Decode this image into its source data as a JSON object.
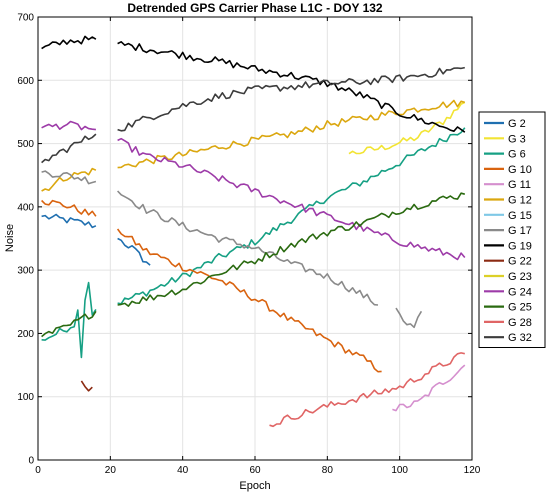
{
  "chart_data": {
    "type": "line",
    "title": "Detrended GPS Carrier Phase L1C - DOY 132",
    "xlabel": "Epoch",
    "ylabel": "Noise",
    "xlim": [
      0,
      120
    ],
    "ylim": [
      0,
      700
    ],
    "xticks": [
      0,
      20,
      40,
      60,
      80,
      100,
      120
    ],
    "yticks": [
      0,
      100,
      200,
      300,
      400,
      500,
      600,
      700
    ],
    "grid": true,
    "legend_position": "right-outside",
    "series": [
      {
        "name": "G 2",
        "color": "#1f6fb0",
        "segments": [
          [
            [
              1,
              385
            ],
            [
              5,
              382
            ],
            [
              10,
              377
            ],
            [
              16,
              370
            ]
          ],
          [
            [
              22,
              350
            ],
            [
              26,
              335
            ],
            [
              29,
              318
            ],
            [
              31,
              308
            ]
          ]
        ]
      },
      {
        "name": "G 3",
        "color": "#f2e433",
        "segments": [
          [
            [
              86,
              484
            ],
            [
              95,
              493
            ],
            [
              105,
              510
            ],
            [
              112,
              535
            ],
            [
              118,
              565
            ]
          ]
        ]
      },
      {
        "name": "G 6",
        "color": "#16a084",
        "segments": [
          [
            [
              1,
              190
            ],
            [
              4,
              197
            ],
            [
              7,
              205
            ],
            [
              10,
              215
            ],
            [
              11,
              235
            ],
            [
              12,
              168
            ],
            [
              13,
              255
            ],
            [
              14,
              283
            ],
            [
              15,
              230
            ],
            [
              16,
              238
            ]
          ],
          [
            [
              22,
              248
            ],
            [
              30,
              265
            ],
            [
              40,
              290
            ],
            [
              50,
              320
            ],
            [
              60,
              345
            ],
            [
              70,
              380
            ],
            [
              80,
              415
            ],
            [
              90,
              440
            ],
            [
              100,
              470
            ],
            [
              110,
              500
            ],
            [
              118,
              525
            ]
          ]
        ]
      },
      {
        "name": "G 10",
        "color": "#d9630f",
        "segments": [
          [
            [
              1,
              410
            ],
            [
              8,
              402
            ],
            [
              16,
              385
            ]
          ],
          [
            [
              22,
              365
            ],
            [
              30,
              330
            ],
            [
              40,
              305
            ],
            [
              50,
              285
            ],
            [
              60,
              255
            ],
            [
              70,
              220
            ],
            [
              80,
              190
            ],
            [
              90,
              160
            ],
            [
              95,
              140
            ]
          ]
        ]
      },
      {
        "name": "G 11",
        "color": "#d58fce",
        "segments": [
          [
            [
              98,
              80
            ],
            [
              105,
              90
            ],
            [
              110,
              115
            ],
            [
              115,
              135
            ],
            [
              118,
              150
            ]
          ]
        ]
      },
      {
        "name": "G 12",
        "color": "#dba70f",
        "segments": [
          [
            [
              1,
              425
            ],
            [
              8,
              448
            ],
            [
              16,
              458
            ]
          ],
          [
            [
              22,
              462
            ],
            [
              30,
              472
            ],
            [
              40,
              482
            ],
            [
              50,
              495
            ],
            [
              60,
              505
            ],
            [
              70,
              515
            ],
            [
              80,
              530
            ],
            [
              90,
              540
            ],
            [
              100,
              550
            ],
            [
              110,
              560
            ],
            [
              118,
              565
            ]
          ]
        ]
      },
      {
        "name": "G 15",
        "color": "#7fc8e6",
        "segments": []
      },
      {
        "name": "G 17",
        "color": "#8a8a8a",
        "segments": [
          [
            [
              1,
              455
            ],
            [
              8,
              450
            ],
            [
              16,
              440
            ]
          ],
          [
            [
              22,
              425
            ],
            [
              30,
              395
            ],
            [
              40,
              370
            ],
            [
              50,
              350
            ],
            [
              60,
              335
            ],
            [
              70,
              310
            ],
            [
              80,
              290
            ],
            [
              90,
              260
            ],
            [
              94,
              245
            ]
          ],
          [
            [
              99,
              240
            ],
            [
              102,
              215
            ],
            [
              104,
              210
            ],
            [
              106,
              235
            ]
          ]
        ]
      },
      {
        "name": "G 19",
        "color": "#000000",
        "segments": [
          [
            [
              1,
              650
            ],
            [
              8,
              662
            ],
            [
              16,
              665
            ]
          ],
          [
            [
              22,
              658
            ],
            [
              30,
              650
            ],
            [
              40,
              640
            ],
            [
              50,
              630
            ],
            [
              60,
              618
            ],
            [
              70,
              608
            ],
            [
              80,
              595
            ],
            [
              90,
              575
            ],
            [
              100,
              548
            ],
            [
              110,
              530
            ],
            [
              118,
              518
            ]
          ]
        ]
      },
      {
        "name": "G 22",
        "color": "#8b2a12",
        "segments": [
          [
            [
              12,
              125
            ],
            [
              13,
              118
            ],
            [
              14,
              114
            ],
            [
              15,
              115
            ]
          ]
        ]
      },
      {
        "name": "G 23",
        "color": "#dcd028",
        "segments": []
      },
      {
        "name": "G 24",
        "color": "#9d3ba8",
        "segments": [
          [
            [
              1,
              525
            ],
            [
              8,
              530
            ],
            [
              16,
              522
            ]
          ],
          [
            [
              22,
              505
            ],
            [
              30,
              480
            ],
            [
              40,
              465
            ],
            [
              50,
              445
            ],
            [
              60,
              425
            ],
            [
              70,
              405
            ],
            [
              80,
              385
            ],
            [
              90,
              365
            ],
            [
              100,
              345
            ],
            [
              110,
              330
            ],
            [
              118,
              320
            ]
          ]
        ]
      },
      {
        "name": "G 25",
        "color": "#2a6a10",
        "segments": [
          [
            [
              1,
              195
            ],
            [
              8,
              210
            ],
            [
              16,
              235
            ]
          ],
          [
            [
              22,
              245
            ],
            [
              30,
              255
            ],
            [
              40,
              270
            ],
            [
              50,
              295
            ],
            [
              60,
              315
            ],
            [
              70,
              340
            ],
            [
              80,
              360
            ],
            [
              90,
              375
            ],
            [
              100,
              395
            ],
            [
              110,
              410
            ],
            [
              118,
              420
            ]
          ]
        ]
      },
      {
        "name": "G 28",
        "color": "#e06565",
        "segments": [
          [
            [
              64,
              55
            ],
            [
              70,
              68
            ],
            [
              80,
              85
            ],
            [
              90,
              100
            ],
            [
              100,
              115
            ],
            [
              110,
              145
            ],
            [
              118,
              168
            ]
          ]
        ]
      },
      {
        "name": "G 32",
        "color": "#3c3c3c",
        "segments": [
          [
            [
              1,
              470
            ],
            [
              8,
              492
            ],
            [
              16,
              515
            ]
          ],
          [
            [
              22,
              522
            ],
            [
              30,
              540
            ],
            [
              40,
              560
            ],
            [
              50,
              575
            ],
            [
              60,
              585
            ],
            [
              70,
              590
            ],
            [
              80,
              595
            ],
            [
              90,
              598
            ],
            [
              100,
              603
            ],
            [
              110,
              612
            ],
            [
              118,
              620
            ]
          ]
        ]
      }
    ]
  }
}
